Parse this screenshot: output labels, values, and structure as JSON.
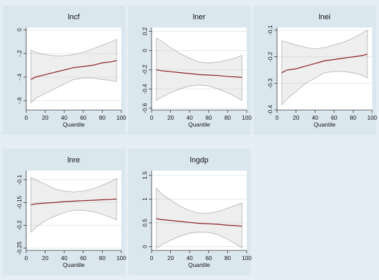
{
  "chart_data": [
    {
      "type": "line",
      "title": "lncf",
      "xlabel": "Quantile",
      "xlim": [
        0,
        100
      ],
      "ylim": [
        -0.68,
        0.02
      ],
      "xticks": [
        0,
        20,
        40,
        60,
        80,
        100
      ],
      "yticks": [
        0,
        -0.2,
        -0.4,
        -0.6
      ],
      "ytick_labels": [
        "0",
        "-.2",
        "-.4",
        "-.6"
      ],
      "grid": true,
      "x": [
        5,
        10,
        20,
        30,
        40,
        50,
        60,
        70,
        80,
        90,
        95
      ],
      "estimate": [
        -0.42,
        -0.4,
        -0.38,
        -0.36,
        -0.34,
        -0.32,
        -0.31,
        -0.3,
        -0.28,
        -0.27,
        -0.26
      ],
      "ci_lower": [
        -0.62,
        -0.58,
        -0.54,
        -0.5,
        -0.46,
        -0.42,
        -0.41,
        -0.41,
        -0.42,
        -0.43,
        -0.44
      ],
      "ci_upper": [
        -0.17,
        -0.19,
        -0.21,
        -0.22,
        -0.22,
        -0.21,
        -0.19,
        -0.16,
        -0.13,
        -0.1,
        -0.08
      ]
    },
    {
      "type": "line",
      "title": "lner",
      "xlabel": "Quantile",
      "xlim": [
        0,
        100
      ],
      "ylim": [
        -0.62,
        0.24
      ],
      "xticks": [
        0,
        20,
        40,
        60,
        80,
        100
      ],
      "yticks": [
        0.2,
        0,
        -0.2,
        -0.4,
        -0.6
      ],
      "ytick_labels": [
        "0.2",
        "0",
        "-0.2",
        "-0.4",
        "-0.6"
      ],
      "grid": true,
      "x": [
        5,
        10,
        20,
        30,
        40,
        50,
        60,
        70,
        80,
        90,
        95
      ],
      "estimate": [
        -0.2,
        -0.21,
        -0.22,
        -0.23,
        -0.24,
        -0.25,
        -0.255,
        -0.26,
        -0.27,
        -0.275,
        -0.28
      ],
      "ci_lower": [
        -0.52,
        -0.49,
        -0.44,
        -0.4,
        -0.37,
        -0.36,
        -0.37,
        -0.4,
        -0.44,
        -0.49,
        -0.52
      ],
      "ci_upper": [
        0.13,
        0.1,
        0.03,
        -0.03,
        -0.08,
        -0.12,
        -0.13,
        -0.12,
        -0.1,
        -0.07,
        -0.05
      ]
    },
    {
      "type": "line",
      "title": "lnei",
      "xlabel": "Quantile",
      "xlim": [
        0,
        100
      ],
      "ylim": [
        -0.4,
        -0.09
      ],
      "xticks": [
        0,
        20,
        40,
        60,
        80,
        100
      ],
      "yticks": [
        -0.1,
        -0.2,
        -0.3,
        -0.4
      ],
      "ytick_labels": [
        "-0.1",
        "-0.2",
        "-0.3",
        "-0.4"
      ],
      "grid": true,
      "x": [
        5,
        10,
        20,
        30,
        40,
        50,
        60,
        70,
        80,
        90,
        95
      ],
      "estimate": [
        -0.26,
        -0.25,
        -0.245,
        -0.235,
        -0.225,
        -0.215,
        -0.21,
        -0.205,
        -0.2,
        -0.195,
        -0.19
      ],
      "ci_lower": [
        -0.38,
        -0.36,
        -0.33,
        -0.3,
        -0.28,
        -0.26,
        -0.255,
        -0.255,
        -0.26,
        -0.27,
        -0.28
      ],
      "ci_upper": [
        -0.14,
        -0.145,
        -0.155,
        -0.165,
        -0.17,
        -0.165,
        -0.155,
        -0.145,
        -0.13,
        -0.11,
        -0.1
      ]
    },
    {
      "type": "line",
      "title": "lnre",
      "xlabel": "Quantile",
      "xlim": [
        0,
        100
      ],
      "ylim": [
        -0.255,
        -0.08
      ],
      "xticks": [
        0,
        20,
        40,
        60,
        80,
        100
      ],
      "yticks": [
        -0.1,
        -0.15,
        -0.2,
        -0.25
      ],
      "ytick_labels": [
        "-0.1",
        "-0.15",
        "-0.2",
        "-0.25"
      ],
      "grid": true,
      "x": [
        5,
        10,
        20,
        30,
        40,
        50,
        60,
        70,
        80,
        90,
        95
      ],
      "estimate": [
        -0.155,
        -0.153,
        -0.151,
        -0.15,
        -0.148,
        -0.147,
        -0.146,
        -0.145,
        -0.144,
        -0.143,
        -0.142
      ],
      "ci_lower": [
        -0.215,
        -0.205,
        -0.19,
        -0.18,
        -0.172,
        -0.167,
        -0.167,
        -0.17,
        -0.176,
        -0.183,
        -0.188
      ],
      "ci_upper": [
        -0.095,
        -0.1,
        -0.11,
        -0.12,
        -0.125,
        -0.127,
        -0.125,
        -0.12,
        -0.112,
        -0.103,
        -0.097
      ]
    },
    {
      "type": "line",
      "title": "lngdp",
      "xlabel": "Quantile",
      "xlim": [
        0,
        100
      ],
      "ylim": [
        -0.08,
        1.6
      ],
      "xticks": [
        0,
        20,
        40,
        60,
        80,
        100
      ],
      "yticks": [
        0,
        0.5,
        1,
        1.5
      ],
      "ytick_labels": [
        "0",
        "0.5",
        "1",
        "1.5"
      ],
      "grid": true,
      "x": [
        5,
        10,
        20,
        30,
        40,
        50,
        60,
        70,
        80,
        90,
        95
      ],
      "estimate": [
        0.59,
        0.57,
        0.55,
        0.53,
        0.51,
        0.49,
        0.48,
        0.47,
        0.45,
        0.44,
        0.43
      ],
      "ci_lower": [
        -0.04,
        0.03,
        0.13,
        0.22,
        0.28,
        0.31,
        0.3,
        0.25,
        0.15,
        0.04,
        -0.03
      ],
      "ci_upper": [
        1.23,
        1.12,
        0.98,
        0.85,
        0.76,
        0.7,
        0.7,
        0.74,
        0.81,
        0.88,
        0.92
      ]
    }
  ]
}
